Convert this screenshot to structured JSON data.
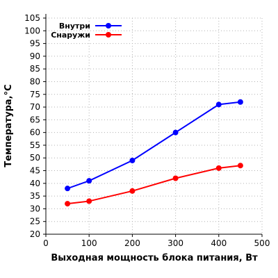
{
  "chart_data": {
    "type": "line",
    "title": "",
    "xlabel": "Выходная мощность блока питания, Вт",
    "ylabel": "Температура,°С",
    "xlim": [
      0,
      500
    ],
    "ylim": [
      20,
      105
    ],
    "x_ticks": [
      0,
      100,
      200,
      300,
      400,
      500
    ],
    "y_ticks": [
      20,
      25,
      30,
      35,
      40,
      45,
      50,
      55,
      60,
      65,
      70,
      75,
      80,
      85,
      90,
      95,
      100,
      105
    ],
    "grid": true,
    "legend_position": "top-left",
    "series": [
      {
        "name": "Внутри",
        "color": "#0000ff",
        "marker": "circle",
        "x": [
          50,
          100,
          200,
          300,
          400,
          450
        ],
        "y": [
          38,
          41,
          49,
          60,
          71,
          72
        ]
      },
      {
        "name": "Снаружи",
        "color": "#ff0000",
        "marker": "circle",
        "x": [
          50,
          100,
          200,
          300,
          400,
          450
        ],
        "y": [
          32,
          33,
          37,
          42,
          46,
          47
        ]
      }
    ]
  }
}
